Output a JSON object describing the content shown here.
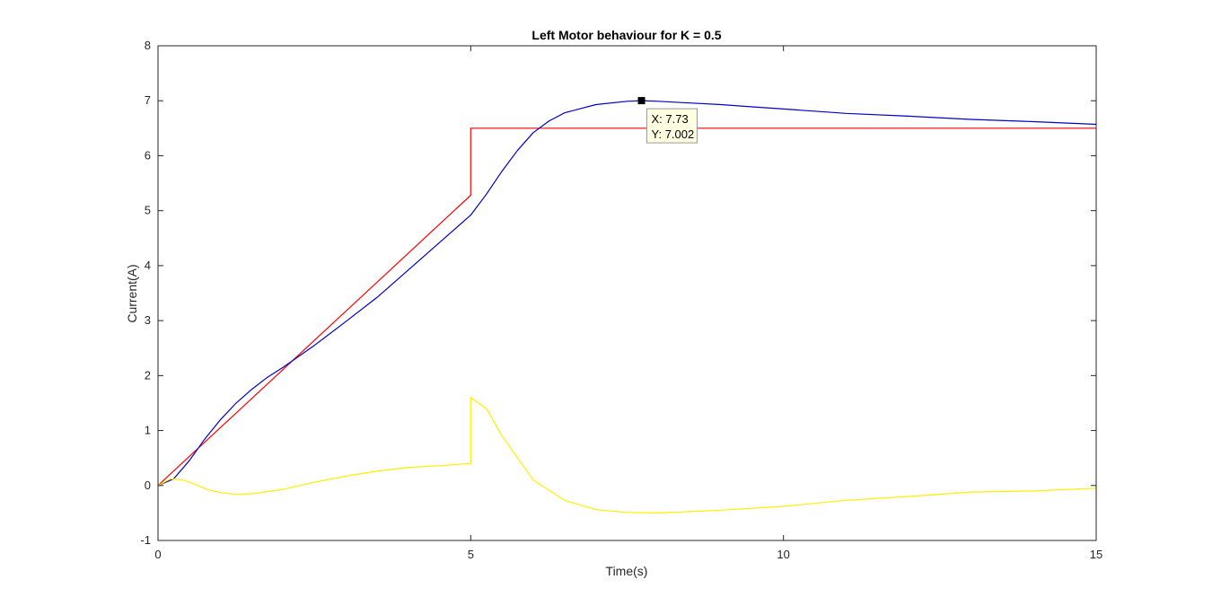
{
  "chart_data": {
    "type": "line",
    "title": "Left Motor behaviour for K = 0.5",
    "xlabel": "Time(s)",
    "ylabel": "Current(A)",
    "xlim": [
      0,
      15
    ],
    "ylim": [
      -1,
      8
    ],
    "xticks": [
      0,
      5,
      10,
      15
    ],
    "yticks": [
      -1,
      0,
      1,
      2,
      3,
      4,
      5,
      6,
      7,
      8
    ],
    "grid": false,
    "legend": "none",
    "series": [
      {
        "color": "#ff0000",
        "x": [
          0,
          5,
          5,
          15
        ],
        "y": [
          0,
          5.28,
          6.5,
          6.5
        ]
      },
      {
        "color": "#0000cc",
        "x": [
          0,
          0.25,
          0.5,
          0.75,
          1,
          1.25,
          1.5,
          1.75,
          2,
          2.5,
          3,
          3.5,
          4,
          4.5,
          5,
          5.25,
          5.5,
          5.75,
          6,
          6.25,
          6.5,
          7,
          7.5,
          7.73,
          8,
          8.5,
          9,
          9.5,
          10,
          11,
          12,
          13,
          14,
          15
        ],
        "y": [
          0,
          0.12,
          0.45,
          0.85,
          1.2,
          1.5,
          1.75,
          1.97,
          2.15,
          2.55,
          2.98,
          3.42,
          3.92,
          4.42,
          4.92,
          5.3,
          5.72,
          6.1,
          6.42,
          6.63,
          6.78,
          6.93,
          6.99,
          7.002,
          6.99,
          6.96,
          6.93,
          6.89,
          6.85,
          6.77,
          6.72,
          6.66,
          6.62,
          6.57
        ]
      },
      {
        "color": "#ffee00",
        "x": [
          0,
          0.2,
          0.4,
          0.6,
          0.8,
          1,
          1.25,
          1.5,
          2,
          2.5,
          3,
          3.5,
          4,
          4.5,
          5,
          5,
          5.25,
          5.5,
          6,
          6.5,
          7,
          7.5,
          8,
          9,
          10,
          11,
          12,
          13,
          14,
          15
        ],
        "y": [
          0,
          0.12,
          0.1,
          0.02,
          -0.08,
          -0.13,
          -0.16,
          -0.15,
          -0.07,
          0.06,
          0.17,
          0.26,
          0.33,
          0.36,
          0.4,
          1.6,
          1.4,
          0.9,
          0.1,
          -0.27,
          -0.44,
          -0.49,
          -0.5,
          -0.45,
          -0.38,
          -0.27,
          -0.2,
          -0.12,
          -0.1,
          -0.05
        ]
      }
    ],
    "datatip": {
      "x": 7.73,
      "y": 7.002,
      "line1": "X: 7.73",
      "line2": "Y: 7.002"
    }
  }
}
